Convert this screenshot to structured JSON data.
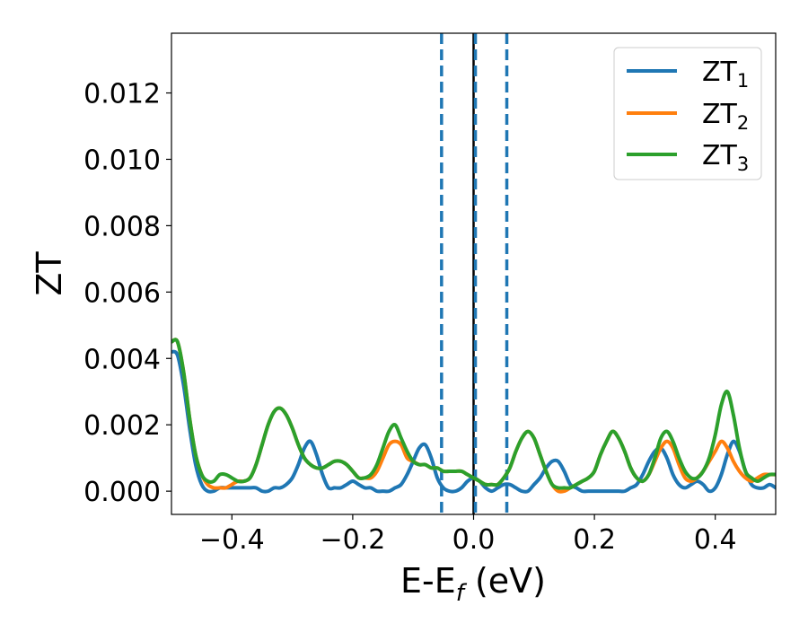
{
  "chart_data": {
    "type": "line",
    "xlabel": "E-E",
    "xlabel_sub": "f",
    "xlabel_unit": " (eV)",
    "ylabel": "ZT",
    "xlim": [
      -0.5,
      0.5
    ],
    "ylim": [
      -0.0007,
      0.0138
    ],
    "x_ticks": [
      -0.4,
      -0.2,
      0.0,
      0.2,
      0.4
    ],
    "x_tick_labels": [
      "−0.4",
      "−0.2",
      "0.0",
      "0.2",
      "0.4"
    ],
    "y_ticks": [
      0.0,
      0.002,
      0.004,
      0.006,
      0.008,
      0.01,
      0.012
    ],
    "y_tick_labels": [
      "0.000",
      "0.002",
      "0.004",
      "0.006",
      "0.008",
      "0.010",
      "0.012"
    ],
    "grid": false,
    "legend_position": "top-right",
    "reference_lines": [
      {
        "x": -0.053,
        "style": "dashed",
        "color": "#1f77b4"
      },
      {
        "x": 0.0,
        "style": "solid",
        "color": "#000000"
      },
      {
        "x": 0.003,
        "style": "dashed",
        "color": "#1f77b4"
      },
      {
        "x": 0.055,
        "style": "dashed",
        "color": "#1f77b4"
      }
    ],
    "series": [
      {
        "name": "ZT",
        "subscript": "1",
        "color": "#1f77b4",
        "x": [
          -0.5,
          -0.49,
          -0.48,
          -0.47,
          -0.46,
          -0.45,
          -0.44,
          -0.43,
          -0.42,
          -0.41,
          -0.4,
          -0.39,
          -0.38,
          -0.37,
          -0.36,
          -0.35,
          -0.34,
          -0.33,
          -0.32,
          -0.31,
          -0.3,
          -0.29,
          -0.28,
          -0.27,
          -0.26,
          -0.25,
          -0.24,
          -0.23,
          -0.22,
          -0.21,
          -0.2,
          -0.19,
          -0.18,
          -0.17,
          -0.16,
          -0.15,
          -0.14,
          -0.13,
          -0.12,
          -0.11,
          -0.1,
          -0.09,
          -0.08,
          -0.07,
          -0.06,
          -0.05,
          -0.04,
          -0.03,
          -0.02,
          -0.01,
          0.0,
          0.01,
          0.02,
          0.03,
          0.04,
          0.05,
          0.06,
          0.07,
          0.08,
          0.09,
          0.1,
          0.11,
          0.12,
          0.13,
          0.14,
          0.15,
          0.16,
          0.17,
          0.18,
          0.19,
          0.2,
          0.21,
          0.22,
          0.23,
          0.24,
          0.25,
          0.26,
          0.27,
          0.28,
          0.29,
          0.3,
          0.31,
          0.32,
          0.33,
          0.34,
          0.35,
          0.36,
          0.37,
          0.38,
          0.39,
          0.4,
          0.41,
          0.42,
          0.43,
          0.44,
          0.45,
          0.46,
          0.47,
          0.48,
          0.49,
          0.5
        ],
        "y": [
          0.0042,
          0.0041,
          0.0032,
          0.0019,
          0.0008,
          0.0002,
          0.0,
          0.0,
          0.0001,
          0.0001,
          0.0001,
          0.0001,
          0.0001,
          0.0001,
          0.0001,
          0.0,
          0.0,
          0.0001,
          0.0001,
          0.0002,
          0.0004,
          0.0008,
          0.0013,
          0.0015,
          0.0011,
          0.0005,
          0.0001,
          0.0001,
          0.0001,
          0.0002,
          0.0003,
          0.0002,
          0.0001,
          0.0001,
          0.0,
          0.0,
          0.0,
          0.0001,
          0.0002,
          0.0005,
          0.0009,
          0.0013,
          0.0014,
          0.001,
          0.0004,
          0.0001,
          0.0,
          0.0,
          0.0001,
          0.0003,
          0.0004,
          0.0003,
          0.0001,
          0.0,
          0.0001,
          0.0002,
          0.0002,
          0.0001,
          0.0,
          0.0,
          0.0002,
          0.0004,
          0.0007,
          0.0009,
          0.0009,
          0.0006,
          0.0002,
          0.0001,
          0.0,
          0.0,
          0.0,
          0.0,
          0.0,
          0.0,
          0.0,
          0.0,
          0.0001,
          0.0002,
          0.0005,
          0.0009,
          0.0012,
          0.0013,
          0.001,
          0.0005,
          0.0002,
          0.0001,
          0.0002,
          0.0003,
          0.0002,
          0.0,
          0.0001,
          0.0005,
          0.0011,
          0.0015,
          0.0012,
          0.0006,
          0.0002,
          0.0001,
          0.0001,
          0.0002,
          0.0001
        ]
      },
      {
        "name": "ZT",
        "subscript": "2",
        "color": "#ff7f0e",
        "x": [
          -0.5,
          -0.49,
          -0.48,
          -0.47,
          -0.46,
          -0.45,
          -0.44,
          -0.43,
          -0.42,
          -0.41,
          -0.4,
          -0.39,
          -0.38,
          -0.37,
          -0.36,
          -0.35,
          -0.34,
          -0.33,
          -0.32,
          -0.31,
          -0.3,
          -0.29,
          -0.28,
          -0.27,
          -0.26,
          -0.25,
          -0.24,
          -0.23,
          -0.22,
          -0.21,
          -0.2,
          -0.19,
          -0.18,
          -0.17,
          -0.16,
          -0.15,
          -0.14,
          -0.13,
          -0.12,
          -0.11,
          -0.1,
          -0.09,
          -0.08,
          -0.07,
          -0.06,
          -0.05,
          -0.04,
          -0.03,
          -0.02,
          -0.01,
          0.0,
          0.01,
          0.02,
          0.03,
          0.04,
          0.05,
          0.06,
          0.07,
          0.08,
          0.09,
          0.1,
          0.11,
          0.12,
          0.13,
          0.14,
          0.15,
          0.16,
          0.17,
          0.18,
          0.19,
          0.2,
          0.21,
          0.22,
          0.23,
          0.24,
          0.25,
          0.26,
          0.27,
          0.28,
          0.29,
          0.3,
          0.31,
          0.32,
          0.33,
          0.34,
          0.35,
          0.36,
          0.37,
          0.38,
          0.39,
          0.4,
          0.41,
          0.42,
          0.43,
          0.44,
          0.45,
          0.46,
          0.47,
          0.48,
          0.49,
          0.5
        ],
        "y": [
          0.0045,
          0.0045,
          0.0036,
          0.0022,
          0.0011,
          0.0005,
          0.0002,
          0.0001,
          0.0001,
          0.0001,
          0.0002,
          0.0003,
          0.0003,
          0.0004,
          0.0008,
          0.0014,
          0.002,
          0.0024,
          0.0025,
          0.0023,
          0.0019,
          0.0014,
          0.001,
          0.0008,
          0.0007,
          0.0007,
          0.0008,
          0.0009,
          0.0009,
          0.0008,
          0.0006,
          0.0004,
          0.0004,
          0.0004,
          0.0006,
          0.001,
          0.0014,
          0.0015,
          0.0014,
          0.001,
          0.0009,
          0.0008,
          0.0008,
          0.0007,
          0.0007,
          0.0006,
          0.0006,
          0.0006,
          0.0006,
          0.0005,
          0.0004,
          0.0003,
          0.0002,
          0.0002,
          0.0002,
          0.0004,
          0.0007,
          0.0012,
          0.0016,
          0.0018,
          0.0016,
          0.0011,
          0.0006,
          0.0002,
          0.0,
          0.0,
          0.0001,
          0.0002,
          0.0003,
          0.0004,
          0.0006,
          0.0011,
          0.0015,
          0.0018,
          0.0016,
          0.0012,
          0.0007,
          0.0004,
          0.0003,
          0.0005,
          0.0009,
          0.0013,
          0.0015,
          0.0013,
          0.0008,
          0.0004,
          0.0003,
          0.0004,
          0.0006,
          0.0009,
          0.0012,
          0.0015,
          0.0013,
          0.0009,
          0.0006,
          0.0004,
          0.0003,
          0.0004,
          0.0005,
          0.0005,
          0.0005
        ]
      },
      {
        "name": "ZT",
        "subscript": "3",
        "color": "#2ca02c",
        "x": [
          -0.5,
          -0.49,
          -0.48,
          -0.47,
          -0.46,
          -0.45,
          -0.44,
          -0.43,
          -0.42,
          -0.41,
          -0.4,
          -0.39,
          -0.38,
          -0.37,
          -0.36,
          -0.35,
          -0.34,
          -0.33,
          -0.32,
          -0.31,
          -0.3,
          -0.29,
          -0.28,
          -0.27,
          -0.26,
          -0.25,
          -0.24,
          -0.23,
          -0.22,
          -0.21,
          -0.2,
          -0.19,
          -0.18,
          -0.17,
          -0.16,
          -0.15,
          -0.14,
          -0.13,
          -0.12,
          -0.11,
          -0.1,
          -0.09,
          -0.08,
          -0.07,
          -0.06,
          -0.05,
          -0.04,
          -0.03,
          -0.02,
          -0.01,
          0.0,
          0.01,
          0.02,
          0.03,
          0.04,
          0.05,
          0.06,
          0.07,
          0.08,
          0.09,
          0.1,
          0.11,
          0.12,
          0.13,
          0.14,
          0.15,
          0.16,
          0.17,
          0.18,
          0.19,
          0.2,
          0.21,
          0.22,
          0.23,
          0.24,
          0.25,
          0.26,
          0.27,
          0.28,
          0.29,
          0.3,
          0.31,
          0.32,
          0.33,
          0.34,
          0.35,
          0.36,
          0.37,
          0.38,
          0.39,
          0.4,
          0.41,
          0.42,
          0.43,
          0.44,
          0.45,
          0.46,
          0.47,
          0.48,
          0.49,
          0.5
        ],
        "y": [
          0.0045,
          0.0045,
          0.0036,
          0.0022,
          0.0011,
          0.0005,
          0.0003,
          0.0003,
          0.0005,
          0.0005,
          0.0004,
          0.0003,
          0.0003,
          0.0004,
          0.0008,
          0.0014,
          0.002,
          0.0024,
          0.0025,
          0.0023,
          0.0019,
          0.0014,
          0.001,
          0.0008,
          0.0007,
          0.0007,
          0.0008,
          0.0009,
          0.0009,
          0.0008,
          0.0006,
          0.0004,
          0.0004,
          0.0005,
          0.0008,
          0.0013,
          0.0018,
          0.002,
          0.0016,
          0.0012,
          0.0009,
          0.0008,
          0.0008,
          0.0007,
          0.0007,
          0.0006,
          0.0006,
          0.0006,
          0.0006,
          0.0005,
          0.0004,
          0.0003,
          0.0002,
          0.0002,
          0.0002,
          0.0004,
          0.0007,
          0.0012,
          0.0016,
          0.0018,
          0.0016,
          0.0011,
          0.0006,
          0.0002,
          0.0001,
          0.0001,
          0.0001,
          0.0002,
          0.0003,
          0.0004,
          0.0006,
          0.0011,
          0.0015,
          0.0018,
          0.0016,
          0.0012,
          0.0007,
          0.0004,
          0.0003,
          0.0005,
          0.001,
          0.0016,
          0.0018,
          0.0015,
          0.001,
          0.0006,
          0.0004,
          0.0004,
          0.0006,
          0.001,
          0.0017,
          0.0026,
          0.003,
          0.0023,
          0.0013,
          0.0006,
          0.0004,
          0.0003,
          0.0004,
          0.0005,
          0.0005
        ]
      }
    ]
  }
}
